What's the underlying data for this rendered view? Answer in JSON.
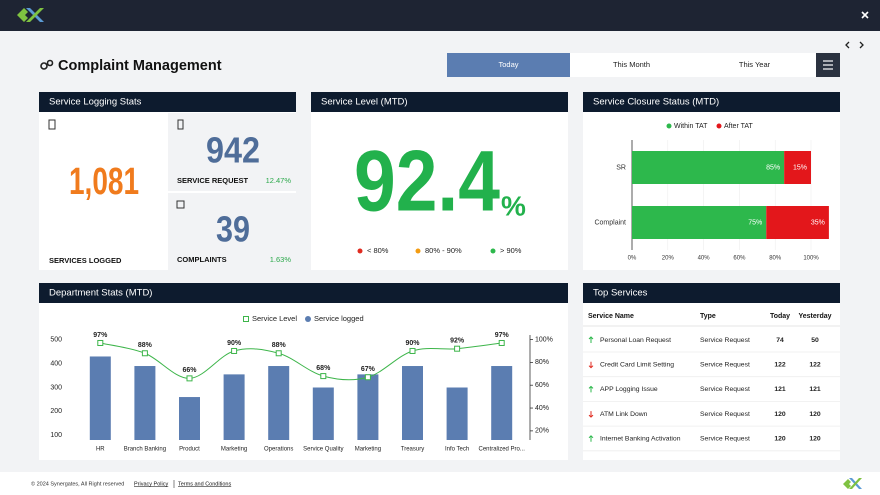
{
  "page": {
    "title": "Complaint Management",
    "tabs": [
      "Today",
      "This Month",
      "This Year"
    ],
    "selected_tab": 0
  },
  "service_logging": {
    "title": "Service Logging Stats",
    "total": {
      "value": "1,081",
      "label": "SERVICES LOGGED"
    },
    "service_request": {
      "value": "942",
      "label": "SERVICE REQUEST",
      "change": "12.47%"
    },
    "complaints": {
      "value": "39",
      "label": "COMPLAINTS",
      "change": "1.63%"
    }
  },
  "service_level": {
    "title": "Service Level (MTD)",
    "value": "92.4",
    "unit": "%",
    "legend": [
      {
        "label": "< 80%",
        "color": "#e02b20"
      },
      {
        "label": "80% - 90%",
        "color": "#f39c12"
      },
      {
        "label": "> 90%",
        "color": "#2db84c"
      }
    ]
  },
  "chart_data": [
    {
      "type": "barh",
      "title": "Service Closure Status (MTD)",
      "categories": [
        "SR",
        "Complaint"
      ],
      "series": [
        {
          "name": "Within TAT",
          "color": "#2db84c",
          "values": [
            85,
            75
          ],
          "value_labels": [
            "85%",
            "75%"
          ]
        },
        {
          "name": "After TAT",
          "color": "#e3171b",
          "values": [
            15,
            35
          ],
          "value_labels": [
            "15%",
            "35%"
          ]
        }
      ],
      "xlim": [
        0,
        100
      ],
      "xticks": [
        {
          "value": 0,
          "label": "0%"
        },
        {
          "value": 20,
          "label": "20%"
        },
        {
          "value": 40,
          "label": "40%"
        },
        {
          "value": 60,
          "label": "60%"
        },
        {
          "value": 80,
          "label": "80%"
        },
        {
          "value": 100,
          "label": "100%"
        }
      ],
      "grid": true
    },
    {
      "type": "bar",
      "title": "Department Stats (MTD)",
      "categories": [
        "HR",
        "Branch Banking",
        "Product",
        "Marketing",
        "Operations",
        "Service Quality",
        "Marketing",
        "Treasury",
        "Info Tech",
        "Centralized Pro..."
      ],
      "series": [
        {
          "name": "Service Level",
          "color": "#3db54a",
          "type": "line",
          "axis": "y2",
          "values": [
            97,
            88,
            66,
            90,
            88,
            68,
            67,
            90,
            92,
            97
          ],
          "value_labels": [
            "97%",
            "88%",
            "66%",
            "90%",
            "88%",
            "68%",
            "67%",
            "90%",
            "92%",
            "97%"
          ]
        },
        {
          "name": "Service logged",
          "color": "#5b7db1",
          "values": [
            430,
            390,
            260,
            355,
            390,
            300,
            355,
            390,
            300,
            390
          ]
        }
      ],
      "ylim": [
        80,
        520
      ],
      "yticks": [
        100,
        200,
        300,
        400,
        500
      ],
      "y2lim": [
        12,
        104
      ],
      "y2ticks": [
        {
          "value": 20,
          "label": "20%"
        },
        {
          "value": 40,
          "label": "40%"
        },
        {
          "value": 60,
          "label": "60%"
        },
        {
          "value": 80,
          "label": "80%"
        },
        {
          "value": 100,
          "label": "100%"
        }
      ],
      "grid": false
    }
  ],
  "top_services": {
    "title": "Top Services",
    "columns": [
      "Service Name",
      "Type",
      "Today",
      "Yesterday"
    ],
    "rows": [
      {
        "trend": "up",
        "cells": [
          "Personal Loan Request",
          "Service Request",
          74,
          50
        ]
      },
      {
        "trend": "down",
        "cells": [
          "Credit Card Limit Setting",
          "Service Request",
          122,
          122
        ]
      },
      {
        "trend": "up",
        "cells": [
          "APP Logging Issue",
          "Service Request",
          121,
          121
        ]
      },
      {
        "trend": "down",
        "cells": [
          "ATM Link Down",
          "Service Request",
          120,
          120
        ]
      },
      {
        "trend": "up",
        "cells": [
          "Internet Banking Activation",
          "Service Request",
          120,
          120
        ]
      }
    ]
  },
  "footer": {
    "copyright": "© 2024 Synergates, All Right reserved",
    "links": [
      "Privacy Policy",
      "Terms and Conditions"
    ]
  }
}
